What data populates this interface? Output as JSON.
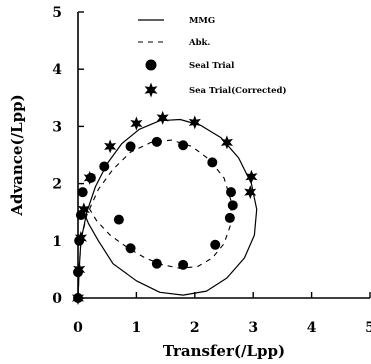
{
  "chart_data": {
    "type": "scatter",
    "title": "",
    "xlabel": "Transfer(/Lpp)",
    "ylabel": "Advance(/Lpp)",
    "xlim": [
      0,
      5
    ],
    "ylim": [
      0,
      5
    ],
    "xticks": [
      "0",
      "1",
      "2",
      "3",
      "4",
      "5"
    ],
    "yticks": [
      "0",
      "1",
      "2",
      "3",
      "4",
      "5"
    ],
    "grid": false,
    "legend_position": "top-center",
    "series": [
      {
        "name": "MMG",
        "style": "solid-line",
        "x": [
          0.0,
          0.02,
          0.05,
          0.15,
          0.3,
          0.5,
          0.75,
          1.05,
          1.4,
          1.75,
          2.1,
          2.45,
          2.75,
          2.97,
          3.06,
          3.02,
          2.85,
          2.55,
          2.2,
          1.8,
          1.4,
          1.0,
          0.6,
          0.35,
          0.18,
          0.12
        ],
        "y": [
          0.0,
          0.5,
          1.0,
          1.5,
          1.95,
          2.35,
          2.7,
          2.95,
          3.1,
          3.12,
          3.02,
          2.8,
          2.45,
          2.0,
          1.55,
          1.1,
          0.7,
          0.35,
          0.12,
          0.05,
          0.1,
          0.3,
          0.6,
          1.0,
          1.3,
          1.45
        ]
      },
      {
        "name": "Abk.",
        "style": "dashed-line",
        "x": [
          0.0,
          0.02,
          0.05,
          0.15,
          0.35,
          0.6,
          0.9,
          1.25,
          1.6,
          1.95,
          2.25,
          2.5,
          2.62,
          2.62,
          2.5,
          2.3,
          2.05,
          1.75,
          1.45,
          1.15,
          0.85,
          0.55,
          0.32,
          0.2
        ],
        "y": [
          0.0,
          0.5,
          1.0,
          1.45,
          1.9,
          2.25,
          2.55,
          2.72,
          2.76,
          2.65,
          2.42,
          2.1,
          1.7,
          1.3,
          0.95,
          0.7,
          0.55,
          0.52,
          0.58,
          0.7,
          0.88,
          1.1,
          1.35,
          1.55
        ]
      },
      {
        "name": "Seal Trial",
        "style": "circle-marker",
        "x": [
          0.0,
          0.0,
          0.02,
          0.05,
          0.08,
          0.22,
          0.45,
          0.9,
          1.35,
          1.8,
          2.3,
          2.62,
          2.65,
          2.6,
          2.35,
          1.8,
          1.35,
          0.9,
          0.7
        ],
        "y": [
          0.0,
          0.45,
          1.0,
          1.45,
          1.85,
          2.1,
          2.3,
          2.65,
          2.73,
          2.67,
          2.37,
          1.85,
          1.62,
          1.4,
          0.93,
          0.58,
          0.6,
          0.87,
          1.37
        ]
      },
      {
        "name": "Sea Trial(Corrected)",
        "style": "star-marker",
        "x": [
          0.0,
          0.02,
          0.05,
          0.1,
          0.2,
          0.55,
          1.0,
          1.45,
          2.0,
          2.55,
          2.97,
          2.95
        ],
        "y": [
          0.0,
          0.5,
          1.05,
          1.55,
          2.1,
          2.65,
          3.05,
          3.15,
          3.07,
          2.72,
          2.12,
          1.85
        ]
      }
    ]
  }
}
